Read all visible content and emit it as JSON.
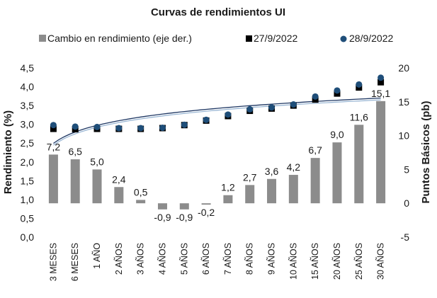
{
  "chart_data": {
    "type": "bar",
    "title": "Curvas de rendimientos UI",
    "categories": [
      "3 MESES",
      "6 MESES",
      "1 AÑO",
      "2 AÑOS",
      "3 AÑOS",
      "4 AÑOS",
      "5 AÑOS",
      "6 AÑOS",
      "7 AÑOS",
      "8 AÑOS",
      "9 AÑOS",
      "10 AÑOS",
      "15 AÑOS",
      "20 AÑOS",
      "25 AÑOS",
      "30 AÑOS"
    ],
    "bar_series": {
      "name": "Cambio en rendimiento (eje der.)",
      "axis": "right",
      "color": "#8c8c8c",
      "values": [
        7.2,
        6.5,
        5.0,
        2.4,
        0.5,
        -0.9,
        -0.9,
        -0.2,
        1.2,
        2.7,
        3.6,
        4.2,
        6.7,
        9.0,
        11.6,
        15.1
      ],
      "labels": [
        "7,2",
        "6,5",
        "5,0",
        "2,4",
        "0,5",
        "-0,9",
        "-0,9",
        "-0,2",
        "1,2",
        "2,7",
        "3,6",
        "4,2",
        "6,7",
        "9,0",
        "11,6",
        "15,1"
      ]
    },
    "point_series": [
      {
        "name": "27/9/2022",
        "axis": "left",
        "marker": "square",
        "color": "#000000",
        "values": [
          2.88,
          2.87,
          2.88,
          2.88,
          2.88,
          2.9,
          2.98,
          3.1,
          3.22,
          3.36,
          3.42,
          3.5,
          3.66,
          3.82,
          3.98,
          4.12
        ]
      },
      {
        "name": "28/9/2022",
        "axis": "left",
        "marker": "circle",
        "color": "#1f4e79",
        "values": [
          2.98,
          2.94,
          2.93,
          2.9,
          2.9,
          2.91,
          2.99,
          3.12,
          3.26,
          3.4,
          3.45,
          3.53,
          3.74,
          3.9,
          4.06,
          4.24
        ]
      }
    ],
    "trendlines": [
      {
        "series": "27/9/2022",
        "color": "#9bb7d4",
        "type": "log"
      },
      {
        "series": "28/9/2022",
        "color": "#1f3864",
        "type": "log"
      }
    ],
    "y_left": {
      "label": "Rendimiento (%)",
      "range": [
        0,
        4.5
      ],
      "ticks": [
        "0,0",
        "0,5",
        "1,0",
        "1,5",
        "2,0",
        "2,5",
        "3,0",
        "3,5",
        "4,0",
        "4,5"
      ]
    },
    "y_right": {
      "label": "Puntos Básicos (pb)",
      "range": [
        -5,
        20
      ],
      "ticks": [
        "-5",
        "0",
        "5",
        "10",
        "15",
        "20"
      ]
    },
    "legend": {
      "placement": "top",
      "entries": [
        "Cambio en rendimiento (eje der.)",
        "27/9/2022",
        "28/9/2022"
      ]
    },
    "grid": false
  }
}
